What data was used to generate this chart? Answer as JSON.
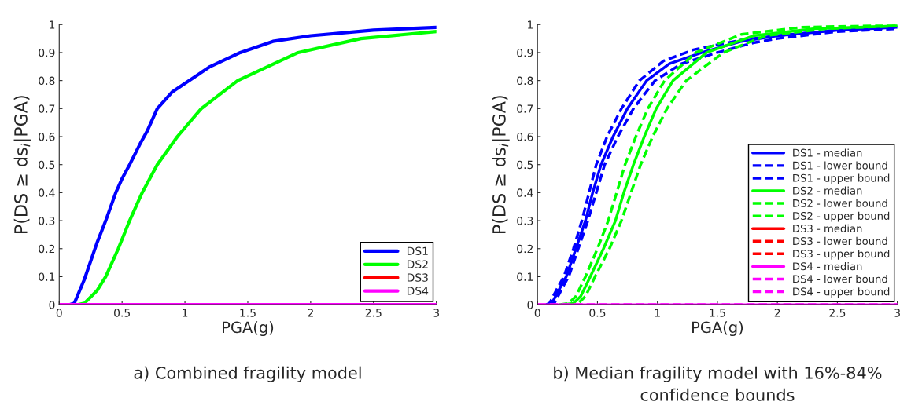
{
  "chart_data": [
    {
      "type": "line",
      "xlabel": "PGA(g)",
      "ylabel": "P(DS ≥ ds$_{i}$|PGA)",
      "annotations": [
        "a) Combined fragility model"
      ],
      "xlim": [
        0,
        3
      ],
      "ylim": [
        0,
        1
      ],
      "xticks": [
        0,
        0.5,
        1,
        1.5,
        2,
        2.5,
        3
      ],
      "yticks": [
        0,
        0.1,
        0.2,
        0.3,
        0.4,
        0.5,
        0.6,
        0.7,
        0.8,
        0.9,
        1
      ],
      "grid": false,
      "legend": "lower right",
      "line_style": "solid",
      "series": [
        {
          "name": "DS1",
          "color": "#0000ff",
          "x": [
            0,
            0.08,
            0.12,
            0.2,
            0.3,
            0.37,
            0.45,
            0.5,
            0.56,
            0.65,
            0.7,
            0.78,
            0.9,
            1.0,
            1.2,
            1.44,
            1.7,
            2.0,
            2.5,
            3.0
          ],
          "values": [
            0,
            0,
            0.005,
            0.09,
            0.22,
            0.3,
            0.4,
            0.45,
            0.5,
            0.58,
            0.62,
            0.7,
            0.76,
            0.79,
            0.85,
            0.9,
            0.94,
            0.96,
            0.98,
            0.99
          ]
        },
        {
          "name": "DS2",
          "color": "#00ff00",
          "x": [
            0,
            0.15,
            0.2,
            0.3,
            0.37,
            0.47,
            0.56,
            0.66,
            0.78,
            0.94,
            1.13,
            1.42,
            1.9,
            2.4,
            3.0
          ],
          "values": [
            0,
            0,
            0.005,
            0.05,
            0.1,
            0.2,
            0.3,
            0.4,
            0.5,
            0.6,
            0.7,
            0.8,
            0.9,
            0.95,
            0.975
          ]
        },
        {
          "name": "DS3",
          "color": "#ff0000"
        },
        {
          "name": "DS4",
          "color": "#ff00ff",
          "x": [
            0,
            3
          ],
          "values": [
            0,
            0
          ]
        }
      ]
    },
    {
      "type": "line",
      "xlabel": "PGA(g)",
      "ylabel": "P(DS ≥ ds$_{i}$|PGA)",
      "annotations": [
        "b) Median fragility model with 16%-84%\nconfidence bounds"
      ],
      "xlim": [
        0,
        3
      ],
      "ylim": [
        0,
        1
      ],
      "xticks": [
        0,
        0.5,
        1,
        1.5,
        2,
        2.5,
        3
      ],
      "yticks": [
        0,
        0.1,
        0.2,
        0.3,
        0.4,
        0.5,
        0.6,
        0.7,
        0.8,
        0.9,
        1
      ],
      "grid": false,
      "legend": "lower right",
      "series": [
        {
          "name": "DS1 - median",
          "color": "#0000ff",
          "line_style": "solid",
          "x": [
            0.08,
            0.12,
            0.2,
            0.24,
            0.32,
            0.4,
            0.46,
            0.53,
            0.63,
            0.75,
            0.91,
            1.1,
            1.37,
            1.7,
            2.0,
            2.5,
            3.0
          ],
          "values": [
            0,
            0.005,
            0.07,
            0.1,
            0.2,
            0.3,
            0.4,
            0.5,
            0.6,
            0.7,
            0.8,
            0.86,
            0.9,
            0.94,
            0.96,
            0.98,
            0.99
          ]
        },
        {
          "name": "DS1 - lower bound",
          "color": "#0000ff",
          "line_style": "dashed",
          "x": [
            0.1,
            0.14,
            0.22,
            0.26,
            0.34,
            0.42,
            0.49,
            0.56,
            0.67,
            0.8,
            0.98,
            1.2,
            1.5,
            1.8,
            2.0,
            2.5,
            3.0
          ],
          "values": [
            0,
            0.005,
            0.07,
            0.1,
            0.2,
            0.3,
            0.4,
            0.5,
            0.6,
            0.7,
            0.8,
            0.86,
            0.9,
            0.935,
            0.95,
            0.975,
            0.985
          ]
        },
        {
          "name": "DS1 - upper bound",
          "color": "#0000ff",
          "line_style": "dashed",
          "x": [
            0.07,
            0.1,
            0.18,
            0.22,
            0.3,
            0.37,
            0.43,
            0.49,
            0.58,
            0.7,
            0.85,
            1.05,
            1.3,
            1.7,
            2.0,
            2.5,
            3.0
          ],
          "values": [
            0,
            0.005,
            0.07,
            0.1,
            0.2,
            0.3,
            0.4,
            0.5,
            0.6,
            0.7,
            0.8,
            0.87,
            0.91,
            0.945,
            0.96,
            0.98,
            0.99
          ]
        },
        {
          "name": "DS2 - median",
          "color": "#00ff00",
          "line_style": "solid",
          "x": [
            0.2,
            0.3,
            0.36,
            0.44,
            0.55,
            0.65,
            0.72,
            0.8,
            0.89,
            0.99,
            1.13,
            1.41,
            1.8,
            2.3,
            3.0
          ],
          "values": [
            0,
            0.005,
            0.03,
            0.1,
            0.2,
            0.3,
            0.4,
            0.5,
            0.6,
            0.7,
            0.8,
            0.9,
            0.96,
            0.985,
            0.995
          ]
        },
        {
          "name": "DS2 - lower bound",
          "color": "#00ff00",
          "line_style": "dashed",
          "x": [
            0.25,
            0.34,
            0.4,
            0.48,
            0.6,
            0.7,
            0.78,
            0.86,
            0.96,
            1.08,
            1.24,
            1.55,
            1.9,
            2.4,
            3.0
          ],
          "values": [
            0,
            0.005,
            0.03,
            0.1,
            0.2,
            0.3,
            0.4,
            0.5,
            0.6,
            0.7,
            0.8,
            0.9,
            0.96,
            0.985,
            0.995
          ]
        },
        {
          "name": "DS2 - upper bound",
          "color": "#00ff00",
          "line_style": "dashed",
          "x": [
            0.18,
            0.26,
            0.32,
            0.4,
            0.5,
            0.59,
            0.66,
            0.73,
            0.82,
            0.92,
            1.06,
            1.32,
            1.7,
            2.2,
            3.0
          ],
          "values": [
            0,
            0.005,
            0.03,
            0.1,
            0.2,
            0.3,
            0.4,
            0.5,
            0.6,
            0.7,
            0.8,
            0.9,
            0.965,
            0.99,
            0.998
          ]
        },
        {
          "name": "DS3 - median",
          "color": "#ff0000",
          "line_style": "solid"
        },
        {
          "name": "DS3 - lower bound",
          "color": "#ff0000",
          "line_style": "dashed"
        },
        {
          "name": "DS3 - upper bound",
          "color": "#ff0000",
          "line_style": "dashed"
        },
        {
          "name": "DS4 - median",
          "color": "#ff00ff",
          "line_style": "solid",
          "x": [
            0,
            3
          ],
          "values": [
            0,
            0
          ]
        },
        {
          "name": "DS4 - lower bound",
          "color": "#ff00ff",
          "line_style": "dashed",
          "x": [
            0,
            3
          ],
          "values": [
            0,
            0
          ]
        },
        {
          "name": "DS4 - upper bound",
          "color": "#ff00ff",
          "line_style": "dashed",
          "x": [
            0,
            3
          ],
          "values": [
            0,
            0
          ]
        }
      ]
    }
  ]
}
